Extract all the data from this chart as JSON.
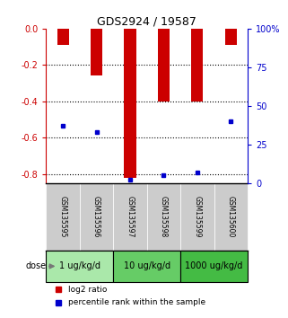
{
  "title": "GDS2924 / 19587",
  "samples": [
    "GSM135595",
    "GSM135596",
    "GSM135597",
    "GSM135598",
    "GSM135599",
    "GSM135600"
  ],
  "log2_ratios": [
    -0.09,
    -0.26,
    -0.82,
    -0.4,
    -0.4,
    -0.09
  ],
  "percentile_ranks": [
    37,
    33,
    2,
    5,
    7,
    40
  ],
  "dose_groups": [
    {
      "label": "1 ug/kg/d",
      "indices": [
        0,
        1
      ],
      "color": "#aae8aa"
    },
    {
      "label": "10 ug/kg/d",
      "indices": [
        2,
        3
      ],
      "color": "#66cc66"
    },
    {
      "label": "1000 ug/kg/d",
      "indices": [
        4,
        5
      ],
      "color": "#44bb44"
    }
  ],
  "bar_color": "#cc0000",
  "blue_color": "#0000cc",
  "left_axis_color": "#cc0000",
  "right_axis_color": "#0000cc",
  "ylim_left": [
    -0.85,
    0.0
  ],
  "ylim_right": [
    0,
    100
  ],
  "yticks_left": [
    0.0,
    -0.2,
    -0.4,
    -0.6,
    -0.8
  ],
  "yticks_right": [
    0,
    25,
    50,
    75,
    100
  ],
  "bar_width": 0.35,
  "sample_bg_color": "#cccccc",
  "legend_red_label": "log2 ratio",
  "legend_blue_label": "percentile rank within the sample"
}
